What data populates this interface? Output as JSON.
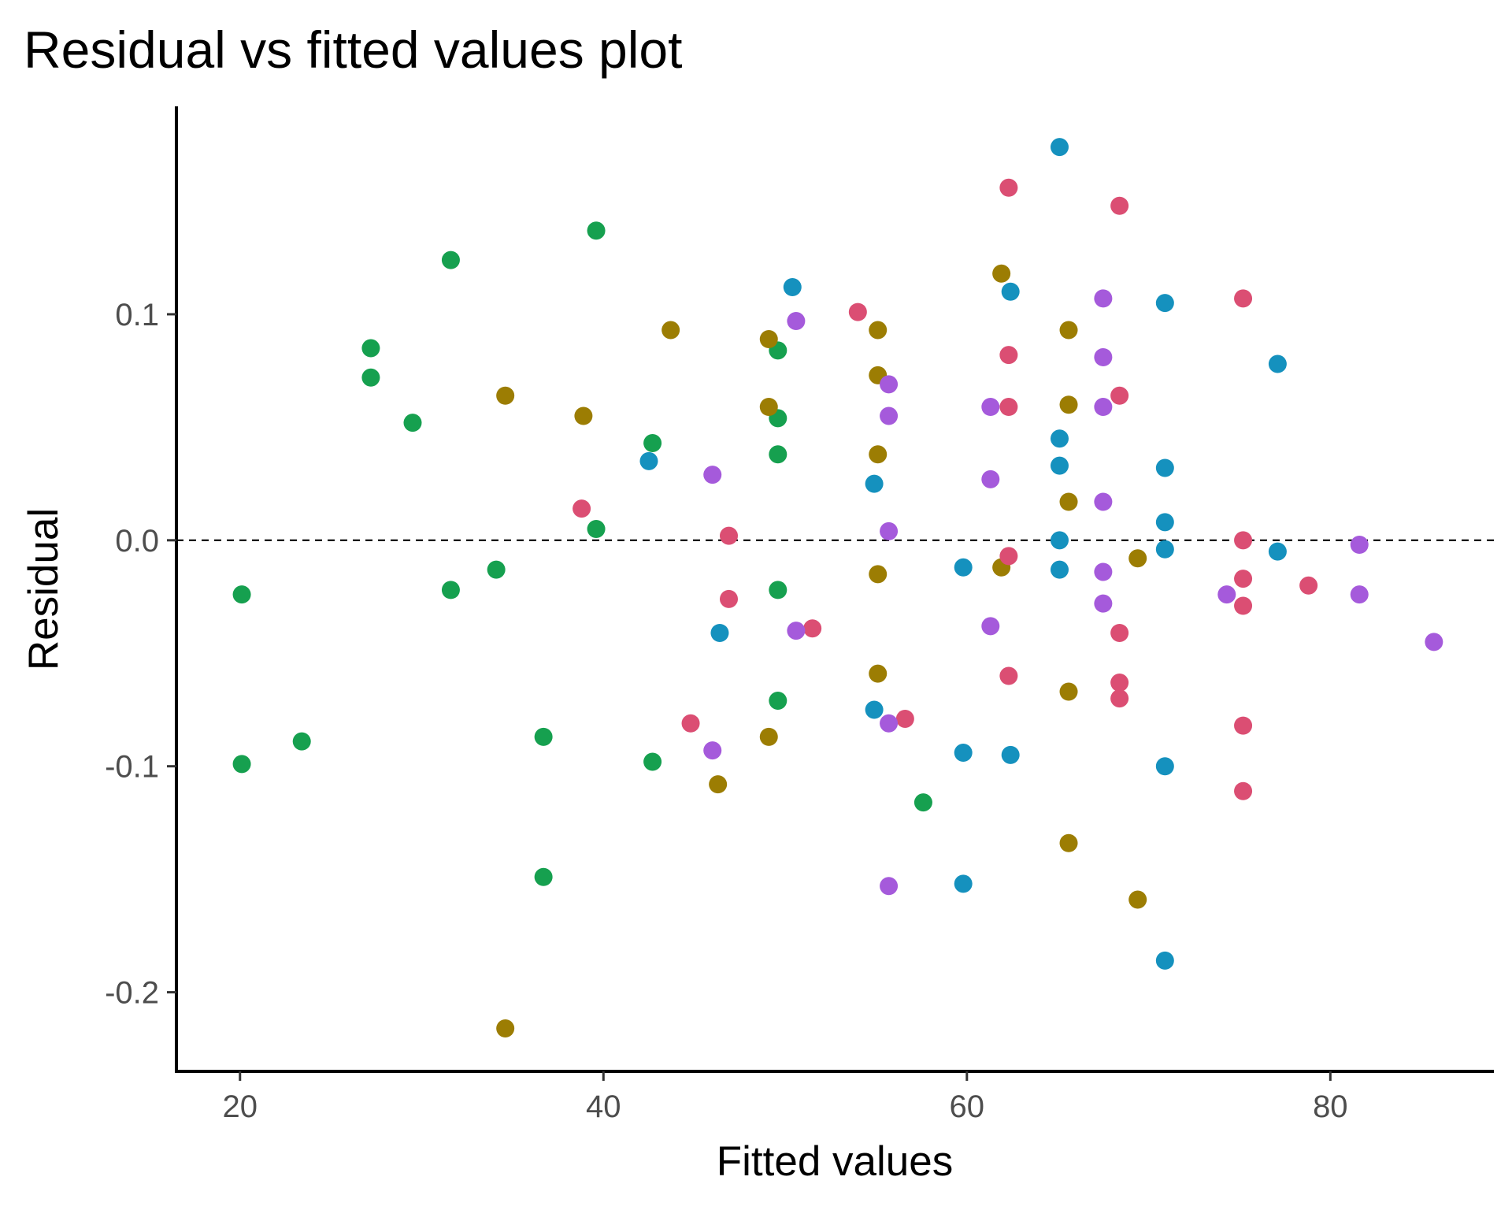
{
  "chart_data": {
    "type": "scatter",
    "title": "Residual vs fitted values plot",
    "xlabel": "Fitted values",
    "ylabel": "Residual",
    "xlim": [
      16.5,
      89
    ],
    "ylim": [
      -0.235,
      0.192
    ],
    "xticks": [
      20,
      40,
      60,
      80
    ],
    "xtick_labels": [
      "20",
      "40",
      "60",
      "80"
    ],
    "yticks": [
      -0.2,
      -0.1,
      0.0,
      0.1
    ],
    "ytick_labels": [
      "-0.2",
      "-0.1",
      "0.0",
      "0.1"
    ],
    "grid": false,
    "reference_line": {
      "y": 0,
      "style": "dashed"
    },
    "legend": "none",
    "series": [
      {
        "color": "#16A04F",
        "points": [
          [
            20.1,
            -0.024
          ],
          [
            20.1,
            -0.099
          ],
          [
            23.4,
            -0.089
          ],
          [
            27.2,
            0.085
          ],
          [
            27.2,
            0.072
          ],
          [
            29.5,
            0.052
          ],
          [
            31.6,
            0.124
          ],
          [
            31.6,
            -0.022
          ],
          [
            34.1,
            -0.013
          ],
          [
            36.7,
            -0.087
          ],
          [
            36.7,
            -0.149
          ],
          [
            39.6,
            0.137
          ],
          [
            39.6,
            0.005
          ],
          [
            42.7,
            0.043
          ],
          [
            42.7,
            -0.098
          ],
          [
            49.6,
            0.084
          ],
          [
            49.6,
            0.054
          ],
          [
            49.6,
            0.038
          ],
          [
            49.6,
            -0.022
          ],
          [
            49.6,
            -0.071
          ],
          [
            57.6,
            -0.116
          ]
        ]
      },
      {
        "color": "#9C7D03",
        "points": [
          [
            34.6,
            0.064
          ],
          [
            34.6,
            -0.216
          ],
          [
            38.9,
            0.055
          ],
          [
            43.7,
            0.093
          ],
          [
            46.3,
            -0.108
          ],
          [
            49.1,
            0.089
          ],
          [
            49.1,
            0.059
          ],
          [
            49.1,
            -0.087
          ],
          [
            55.1,
            0.093
          ],
          [
            55.1,
            0.073
          ],
          [
            55.1,
            0.038
          ],
          [
            55.1,
            -0.015
          ],
          [
            55.1,
            -0.059
          ],
          [
            61.9,
            0.118
          ],
          [
            61.9,
            -0.012
          ],
          [
            65.6,
            0.093
          ],
          [
            65.6,
            0.06
          ],
          [
            65.6,
            0.017
          ],
          [
            65.6,
            -0.067
          ],
          [
            65.6,
            -0.134
          ],
          [
            69.4,
            -0.008
          ],
          [
            69.4,
            -0.159
          ]
        ]
      },
      {
        "color": "#1591BE",
        "points": [
          [
            42.5,
            0.035
          ],
          [
            46.4,
            -0.041
          ],
          [
            50.4,
            0.112
          ],
          [
            54.9,
            0.025
          ],
          [
            54.9,
            -0.075
          ],
          [
            59.8,
            -0.012
          ],
          [
            59.8,
            -0.094
          ],
          [
            59.8,
            -0.152
          ],
          [
            62.4,
            0.11
          ],
          [
            62.4,
            -0.095
          ],
          [
            65.1,
            0.174
          ],
          [
            65.1,
            0.045
          ],
          [
            65.1,
            0.033
          ],
          [
            65.1,
            0.0
          ],
          [
            65.1,
            -0.013
          ],
          [
            70.9,
            0.105
          ],
          [
            70.9,
            0.032
          ],
          [
            70.9,
            0.008
          ],
          [
            70.9,
            -0.004
          ],
          [
            70.9,
            -0.1
          ],
          [
            70.9,
            -0.186
          ],
          [
            77.1,
            0.078
          ],
          [
            77.1,
            -0.005
          ]
        ]
      },
      {
        "color": "#DB4E73",
        "points": [
          [
            38.8,
            0.014
          ],
          [
            44.8,
            -0.081
          ],
          [
            46.9,
            0.002
          ],
          [
            46.9,
            -0.026
          ],
          [
            51.5,
            -0.039
          ],
          [
            54.0,
            0.101
          ],
          [
            56.6,
            -0.079
          ],
          [
            62.3,
            0.156
          ],
          [
            62.3,
            0.082
          ],
          [
            62.3,
            0.059
          ],
          [
            62.3,
            -0.007
          ],
          [
            62.3,
            -0.06
          ],
          [
            68.4,
            0.148
          ],
          [
            68.4,
            0.064
          ],
          [
            68.4,
            -0.041
          ],
          [
            68.4,
            -0.063
          ],
          [
            68.4,
            -0.07
          ],
          [
            75.2,
            0.107
          ],
          [
            75.2,
            0.0
          ],
          [
            75.2,
            -0.017
          ],
          [
            75.2,
            -0.029
          ],
          [
            75.2,
            -0.082
          ],
          [
            75.2,
            -0.111
          ],
          [
            78.8,
            -0.02
          ]
        ]
      },
      {
        "color": "#A55ADB",
        "points": [
          [
            46.0,
            0.029
          ],
          [
            46.0,
            -0.093
          ],
          [
            50.6,
            0.097
          ],
          [
            50.6,
            -0.04
          ],
          [
            55.7,
            0.069
          ],
          [
            55.7,
            0.055
          ],
          [
            55.7,
            0.004
          ],
          [
            55.7,
            -0.081
          ],
          [
            55.7,
            -0.153
          ],
          [
            61.3,
            0.059
          ],
          [
            61.3,
            0.027
          ],
          [
            61.3,
            -0.038
          ],
          [
            67.5,
            0.107
          ],
          [
            67.5,
            0.081
          ],
          [
            67.5,
            0.059
          ],
          [
            67.5,
            0.017
          ],
          [
            67.5,
            -0.014
          ],
          [
            67.5,
            -0.028
          ],
          [
            74.3,
            -0.024
          ],
          [
            81.6,
            -0.002
          ],
          [
            81.6,
            -0.024
          ],
          [
            85.7,
            -0.045
          ]
        ]
      }
    ]
  }
}
